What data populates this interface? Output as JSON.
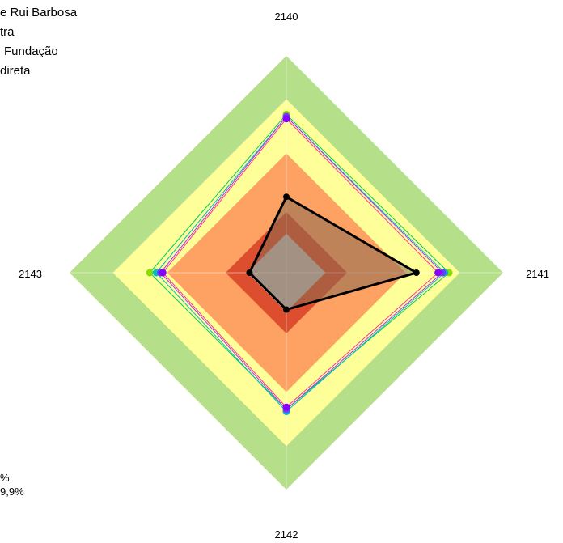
{
  "legend": {
    "lines": [
      "e Rui Barbosa",
      "tra",
      "Fundação",
      "direta"
    ]
  },
  "bottom_note": {
    "lines": [
      "%",
      "9,9%"
    ]
  },
  "colors": {
    "band_green": "#b6df8a",
    "band_yellow": "#ffff99",
    "band_orange": "#fda262",
    "band_red": "#dc4e2d",
    "band_center": "#c0c0c0",
    "focus_line": "#000000",
    "focus_fill": "#8b6a52"
  },
  "chart_data": {
    "type": "radar",
    "axes": [
      "2140",
      "2141",
      "2142",
      "2143"
    ],
    "scale_max": 1.0,
    "bands": [
      {
        "level": 1.0,
        "color": "#b6df8a"
      },
      {
        "level": 0.8,
        "color": "#ffff99"
      },
      {
        "level": 0.55,
        "color": "#fda262"
      },
      {
        "level": 0.28,
        "color": "#dc4e2d"
      },
      {
        "level": 0.18,
        "color": "#c0c0c0"
      }
    ],
    "series": [
      {
        "values": [
          0.73,
          0.75,
          0.63,
          0.63
        ],
        "color": "#00cc66",
        "marker": "#88dd00"
      },
      {
        "values": [
          0.72,
          0.73,
          0.64,
          0.6
        ],
        "color": "#00bbcc",
        "marker": "#00bbcc"
      },
      {
        "values": [
          0.72,
          0.72,
          0.63,
          0.58
        ],
        "color": "#aa33ff",
        "marker": "#7733ff"
      },
      {
        "values": [
          0.71,
          0.7,
          0.62,
          0.57
        ],
        "color": "#ff3399",
        "marker": "#8800ff"
      },
      {
        "values": [
          0.35,
          0.6,
          0.17,
          0.17
        ],
        "color": "#000000",
        "marker": "#000000",
        "highlight": true
      }
    ]
  }
}
